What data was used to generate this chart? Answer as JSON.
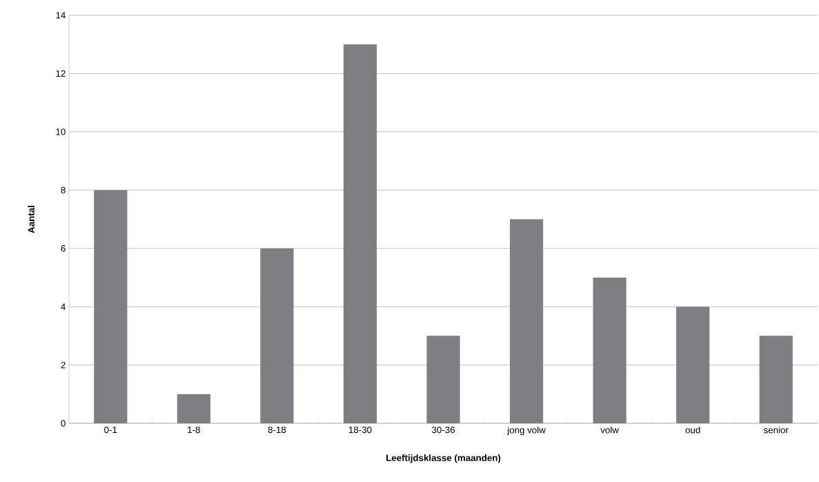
{
  "chart_data": {
    "type": "bar",
    "xlabel": "Leeftijdsklasse (maanden)",
    "ylabel": "Aantal",
    "categories": [
      "0-1",
      "1-8",
      "8-18",
      "18-30",
      "30-36",
      "jong volw",
      "volw",
      "oud",
      "senior"
    ],
    "values": [
      8,
      1,
      6,
      13,
      3,
      7,
      5,
      4,
      3
    ],
    "color": "#7f7f83",
    "ylim": [
      0,
      14
    ],
    "yticks": [
      0,
      2,
      4,
      6,
      8,
      10,
      12,
      14
    ],
    "grid": "y"
  }
}
